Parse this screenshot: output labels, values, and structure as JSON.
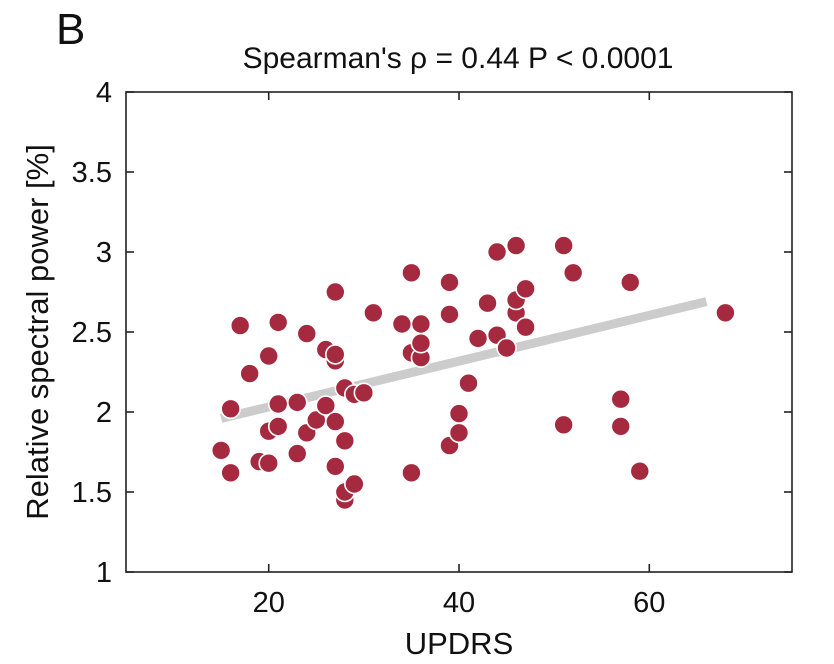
{
  "panel_label": "B",
  "chart_data": {
    "type": "scatter",
    "title": "Spearman's ρ = 0.44 P < 0.0001",
    "xlabel": "UPDRS",
    "ylabel": "Relative spectral power [%]",
    "xlim": [
      5,
      75
    ],
    "ylim": [
      1,
      4
    ],
    "xticks": [
      20,
      40,
      60
    ],
    "yticks": [
      1,
      1.5,
      2,
      2.5,
      3,
      3.5,
      4
    ],
    "x_tick_labels": [
      "20",
      "40",
      "60"
    ],
    "y_tick_labels": [
      "1",
      "1.5",
      "2",
      "2.5",
      "3",
      "3.5",
      "4"
    ],
    "grid": false,
    "legend": "none",
    "point_color": "#A52A3F",
    "fit_line_color": "#CCCCCC",
    "fit_line": {
      "x": [
        15,
        66
      ],
      "y": [
        1.96,
        2.69
      ]
    },
    "points": [
      {
        "x": 15,
        "y": 1.76
      },
      {
        "x": 16,
        "y": 1.62
      },
      {
        "x": 16,
        "y": 2.02
      },
      {
        "x": 17,
        "y": 2.54
      },
      {
        "x": 18,
        "y": 2.24
      },
      {
        "x": 19,
        "y": 1.69
      },
      {
        "x": 20,
        "y": 1.68
      },
      {
        "x": 20,
        "y": 1.88
      },
      {
        "x": 20,
        "y": 2.35
      },
      {
        "x": 21,
        "y": 1.91
      },
      {
        "x": 21,
        "y": 2.05
      },
      {
        "x": 21,
        "y": 2.56
      },
      {
        "x": 23,
        "y": 1.74
      },
      {
        "x": 23,
        "y": 2.06
      },
      {
        "x": 24,
        "y": 1.87
      },
      {
        "x": 24,
        "y": 2.49
      },
      {
        "x": 25,
        "y": 1.95
      },
      {
        "x": 26,
        "y": 2.04
      },
      {
        "x": 26,
        "y": 2.39
      },
      {
        "x": 27,
        "y": 1.66
      },
      {
        "x": 27,
        "y": 1.94
      },
      {
        "x": 27,
        "y": 2.32
      },
      {
        "x": 27,
        "y": 2.36
      },
      {
        "x": 27,
        "y": 2.75
      },
      {
        "x": 28,
        "y": 1.45
      },
      {
        "x": 28,
        "y": 1.5
      },
      {
        "x": 28,
        "y": 1.82
      },
      {
        "x": 28,
        "y": 2.15
      },
      {
        "x": 29,
        "y": 1.55
      },
      {
        "x": 29,
        "y": 2.11
      },
      {
        "x": 30,
        "y": 2.12
      },
      {
        "x": 31,
        "y": 2.62
      },
      {
        "x": 34,
        "y": 2.55
      },
      {
        "x": 35,
        "y": 1.62
      },
      {
        "x": 35,
        "y": 2.37
      },
      {
        "x": 35,
        "y": 2.87
      },
      {
        "x": 36,
        "y": 2.34
      },
      {
        "x": 36,
        "y": 2.43
      },
      {
        "x": 36,
        "y": 2.55
      },
      {
        "x": 39,
        "y": 1.79
      },
      {
        "x": 39,
        "y": 2.61
      },
      {
        "x": 39,
        "y": 2.81
      },
      {
        "x": 40,
        "y": 1.87
      },
      {
        "x": 40,
        "y": 1.99
      },
      {
        "x": 41,
        "y": 2.18
      },
      {
        "x": 42,
        "y": 2.46
      },
      {
        "x": 43,
        "y": 2.68
      },
      {
        "x": 44,
        "y": 2.48
      },
      {
        "x": 44,
        "y": 3.0
      },
      {
        "x": 45,
        "y": 2.4
      },
      {
        "x": 46,
        "y": 2.62
      },
      {
        "x": 46,
        "y": 2.7
      },
      {
        "x": 46,
        "y": 3.04
      },
      {
        "x": 47,
        "y": 2.53
      },
      {
        "x": 47,
        "y": 2.77
      },
      {
        "x": 51,
        "y": 1.92
      },
      {
        "x": 51,
        "y": 3.04
      },
      {
        "x": 52,
        "y": 2.87
      },
      {
        "x": 57,
        "y": 1.91
      },
      {
        "x": 57,
        "y": 2.08
      },
      {
        "x": 58,
        "y": 2.81
      },
      {
        "x": 59,
        "y": 1.63
      },
      {
        "x": 68,
        "y": 2.62
      }
    ]
  }
}
